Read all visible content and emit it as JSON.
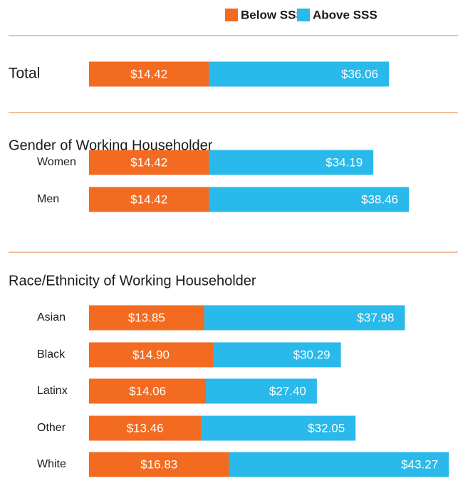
{
  "chart_data": {
    "type": "bar",
    "series": [
      {
        "name": "Below SSS",
        "color": "#f26b21"
      },
      {
        "name": "Above SSS",
        "color": "#29b9ea"
      }
    ],
    "groups": [
      {
        "categories": [
          "Total"
        ],
        "series": [
          {
            "values": [
              14.42
            ],
            "value_labels": [
              "$14.42"
            ]
          },
          {
            "values": [
              36.06
            ],
            "value_labels": [
              "$36.06"
            ]
          }
        ]
      },
      {
        "title": "Gender of Working Householder",
        "categories": [
          "Women",
          "Men"
        ],
        "series": [
          {
            "values": [
              14.42,
              14.42
            ],
            "value_labels": [
              "$14.42",
              "$14.42"
            ]
          },
          {
            "values": [
              34.19,
              38.46
            ],
            "value_labels": [
              "$34.19",
              "$38.46"
            ]
          }
        ]
      },
      {
        "title": "Race/Ethnicity of Working Householder",
        "categories": [
          "Asian",
          "Black",
          "Latinx",
          "Other",
          "White"
        ],
        "series": [
          {
            "values": [
              13.85,
              14.9,
              14.06,
              13.46,
              16.83
            ],
            "value_labels": [
              "$13.85",
              "$14.90",
              "$14.06",
              "$13.46",
              "$16.83"
            ]
          },
          {
            "values": [
              37.98,
              30.29,
              27.4,
              32.05,
              43.27
            ],
            "value_labels": [
              "$37.98",
              "$30.29",
              "$27.40",
              "$32.05",
              "$43.27"
            ]
          }
        ]
      }
    ]
  }
}
